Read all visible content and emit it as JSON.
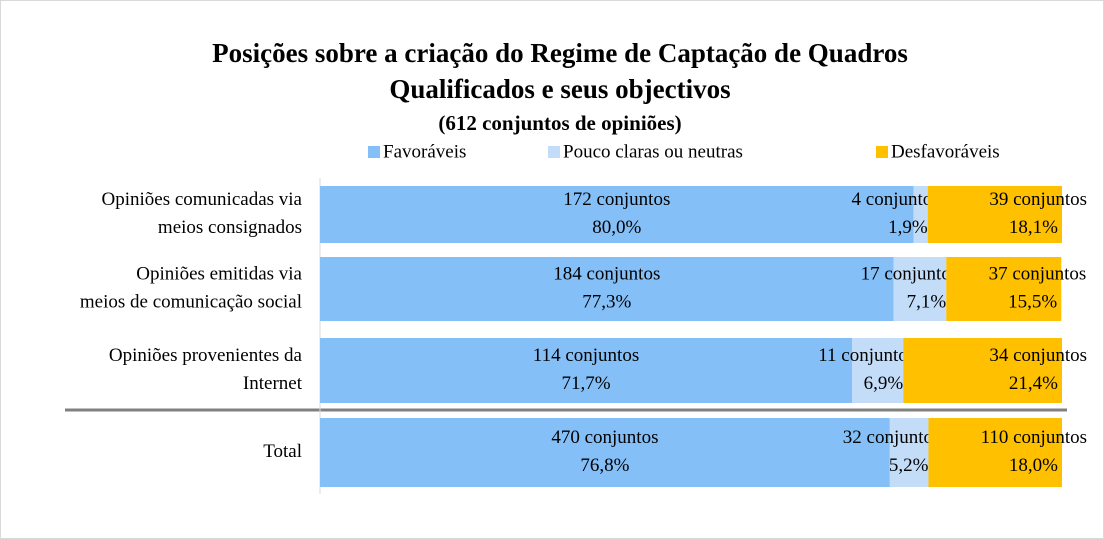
{
  "chart_data": {
    "type": "stacked-bar-horizontal",
    "title": [
      "Posições sobre a criação do Regime de Captação de Quadros",
      "Qualificados e seus objectivos"
    ],
    "subtitle": "(612 conjuntos de opiniões)",
    "categories": [
      [
        "Opiniões comunicadas via",
        "meios consignados"
      ],
      [
        "Opiniões emitidas via",
        "meios de comunicação social"
      ],
      [
        "Opiniões provenientes da",
        "Internet"
      ],
      [
        "Total"
      ]
    ],
    "xlim": [
      0,
      100
    ],
    "series": [
      {
        "name": "Favoráveis",
        "color": "#85bff7",
        "values": [
          80.0,
          77.3,
          71.7,
          76.8
        ],
        "value_labels": [
          "80,0%",
          "77,3%",
          "71,7%",
          "76,8%"
        ],
        "count_labels": [
          "172 conjuntos",
          "184 conjuntos",
          "114 conjuntos",
          "470 conjuntos"
        ]
      },
      {
        "name": "Pouco claras ou neutras",
        "color": "#c3ddf9",
        "values": [
          1.9,
          7.1,
          6.9,
          5.2
        ],
        "value_labels": [
          "1,9%",
          "7,1%",
          "6,9%",
          "5,2%"
        ],
        "count_labels": [
          "4 conjuntos",
          "17 conjuntos",
          "11 conjuntos",
          "32 conjuntos"
        ]
      },
      {
        "name": "Desfavoráveis",
        "color": "#ffc000",
        "values": [
          18.1,
          15.5,
          21.4,
          18.0
        ],
        "value_labels": [
          "18,1%",
          "15,5%",
          "21,4%",
          "18,0%"
        ],
        "count_labels": [
          "39 conjuntos",
          "37 conjuntos",
          "34 conjuntos",
          "110 conjuntos"
        ]
      }
    ],
    "legend": "top"
  }
}
